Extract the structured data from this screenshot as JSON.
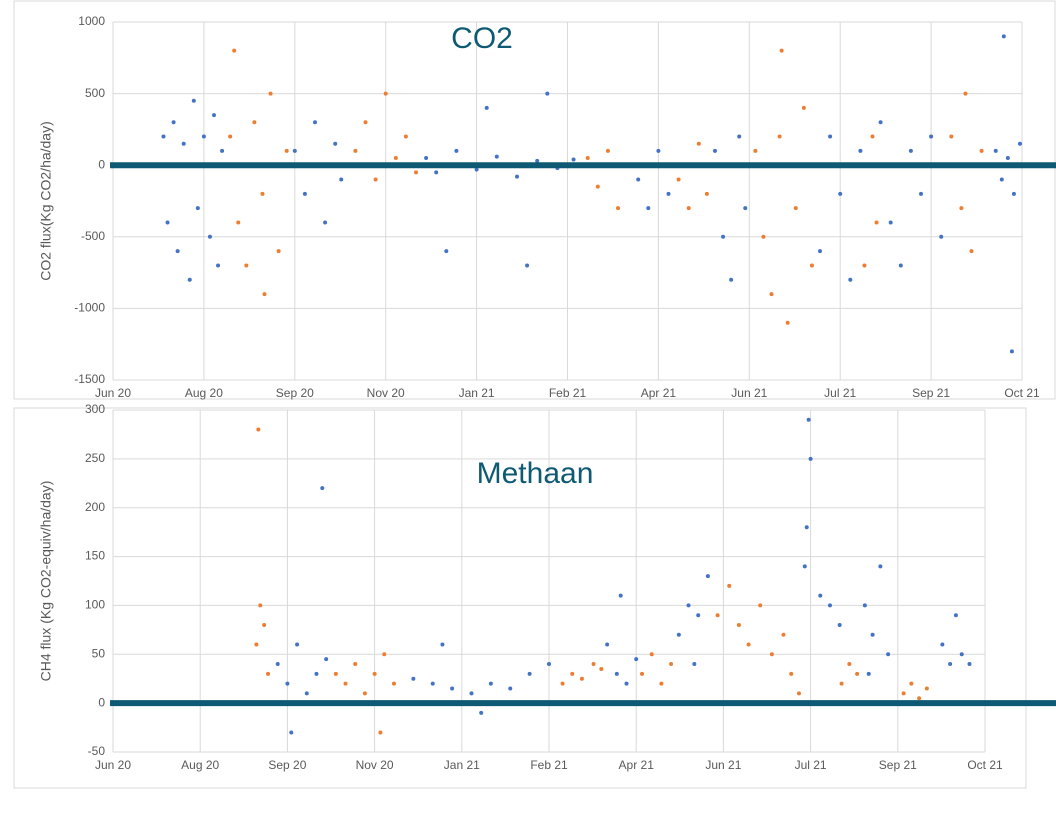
{
  "chart_data": [
    {
      "type": "scatter",
      "title": "CO2",
      "y_label": "CO2 flux(Kg CO2/ha/day)",
      "xlim": [
        0,
        450
      ],
      "xticks": [
        {
          "value": 0,
          "label": "Jun 20"
        },
        {
          "value": 45,
          "label": "Aug 20"
        },
        {
          "value": 90,
          "label": "Sep 20"
        },
        {
          "value": 135,
          "label": "Nov 20"
        },
        {
          "value": 180,
          "label": "Jan 21"
        },
        {
          "value": 225,
          "label": "Feb 21"
        },
        {
          "value": 270,
          "label": "Apr 21"
        },
        {
          "value": 315,
          "label": "Jun 21"
        },
        {
          "value": 360,
          "label": "Jul 21"
        },
        {
          "value": 405,
          "label": "Sep 21"
        },
        {
          "value": 450,
          "label": "Oct 21"
        }
      ],
      "ylim": [
        -1500,
        1000
      ],
      "yticks": [
        -1500,
        -1000,
        -500,
        0,
        500,
        1000
      ],
      "grid": true,
      "hline": 0,
      "hline_color": "#0e5a74",
      "series": [
        {
          "color": "#4472c4",
          "x": [
            25,
            27,
            30,
            32,
            35,
            38,
            40,
            42,
            45,
            48,
            50,
            52,
            54,
            90,
            95,
            100,
            105,
            110,
            113,
            155,
            160,
            165,
            170,
            180,
            185,
            190,
            200,
            205,
            210,
            215,
            220,
            228,
            260,
            265,
            270,
            275,
            298,
            302,
            306,
            310,
            313,
            350,
            355,
            360,
            365,
            370,
            380,
            385,
            390,
            395,
            400,
            405,
            410,
            437,
            440,
            441,
            443,
            445,
            446,
            449
          ],
          "values": [
            200,
            -400,
            300,
            -600,
            150,
            -800,
            450,
            -300,
            200,
            -500,
            350,
            -700,
            100,
            100,
            -200,
            300,
            -400,
            150,
            -100,
            50,
            -50,
            -600,
            100,
            -30,
            400,
            60,
            -80,
            -700,
            30,
            500,
            -20,
            40,
            -100,
            -300,
            100,
            -200,
            100,
            -500,
            -800,
            200,
            -300,
            -600,
            200,
            -200,
            -800,
            100,
            300,
            -400,
            -700,
            100,
            -200,
            200,
            -500,
            100,
            -100,
            900,
            50,
            -1300,
            -200,
            150
          ]
        },
        {
          "color": "#ed7d31",
          "x": [
            58,
            60,
            62,
            66,
            70,
            74,
            75,
            78,
            82,
            86,
            120,
            125,
            130,
            135,
            140,
            145,
            150,
            235,
            240,
            245,
            250,
            255,
            280,
            285,
            290,
            294,
            318,
            322,
            326,
            330,
            331,
            334,
            338,
            342,
            346,
            372,
            376,
            378,
            415,
            420,
            422,
            425,
            430
          ],
          "values": [
            200,
            800,
            -400,
            -700,
            300,
            -200,
            -900,
            500,
            -600,
            100,
            100,
            300,
            -100,
            500,
            50,
            200,
            -50,
            50,
            -150,
            100,
            -300,
            0,
            -100,
            -300,
            150,
            -200,
            100,
            -500,
            -900,
            200,
            800,
            -1100,
            -300,
            400,
            -700,
            -700,
            200,
            -400,
            200,
            -300,
            500,
            -600,
            100
          ]
        }
      ]
    },
    {
      "type": "scatter",
      "title": "Methaan",
      "y_label": "CH4 flux (Kg CO2-equiv/ha/day)",
      "xlim": [
        0,
        450
      ],
      "xticks": [
        {
          "value": 0,
          "label": "Jun 20"
        },
        {
          "value": 45,
          "label": "Aug 20"
        },
        {
          "value": 90,
          "label": "Sep 20"
        },
        {
          "value": 135,
          "label": "Nov 20"
        },
        {
          "value": 180,
          "label": "Jan 21"
        },
        {
          "value": 225,
          "label": "Feb 21"
        },
        {
          "value": 270,
          "label": "Apr 21"
        },
        {
          "value": 315,
          "label": "Jun 21"
        },
        {
          "value": 360,
          "label": "Jul 21"
        },
        {
          "value": 405,
          "label": "Sep 21"
        },
        {
          "value": 450,
          "label": "Oct 21"
        }
      ],
      "ylim": [
        -50,
        300
      ],
      "yticks": [
        -50,
        0,
        50,
        100,
        150,
        200,
        250,
        300
      ],
      "grid": true,
      "hline": 0,
      "hline_color": "#0e5a74",
      "series": [
        {
          "color": "#4472c4",
          "x": [
            85,
            90,
            92,
            95,
            100,
            105,
            108,
            110,
            155,
            165,
            170,
            175,
            185,
            190,
            195,
            205,
            215,
            225,
            255,
            260,
            262,
            265,
            270,
            292,
            297,
            300,
            302,
            307,
            357,
            358,
            359,
            360,
            365,
            370,
            375,
            388,
            390,
            392,
            396,
            400,
            428,
            432,
            435,
            438,
            442
          ],
          "values": [
            40,
            20,
            -30,
            60,
            10,
            30,
            220,
            45,
            25,
            20,
            60,
            15,
            10,
            -10,
            20,
            15,
            30,
            40,
            60,
            30,
            110,
            20,
            45,
            70,
            100,
            40,
            90,
            130,
            140,
            180,
            290,
            250,
            110,
            100,
            80,
            100,
            30,
            70,
            140,
            50,
            60,
            40,
            90,
            50,
            40
          ]
        },
        {
          "color": "#ed7d31",
          "x": [
            74,
            75,
            76,
            78,
            79,
            80,
            115,
            120,
            125,
            130,
            135,
            138,
            140,
            145,
            232,
            237,
            242,
            248,
            252,
            273,
            278,
            283,
            288,
            312,
            318,
            323,
            325,
            328,
            334,
            340,
            346,
            350,
            354,
            376,
            380,
            384,
            408,
            412,
            416,
            420
          ],
          "values": [
            60,
            280,
            100,
            80,
            0,
            30,
            30,
            20,
            40,
            10,
            30,
            -30,
            50,
            20,
            20,
            30,
            25,
            40,
            35,
            30,
            50,
            20,
            40,
            90,
            120,
            80,
            0,
            60,
            100,
            50,
            70,
            30,
            10,
            20,
            40,
            30,
            10,
            20,
            5,
            15
          ]
        }
      ]
    }
  ]
}
